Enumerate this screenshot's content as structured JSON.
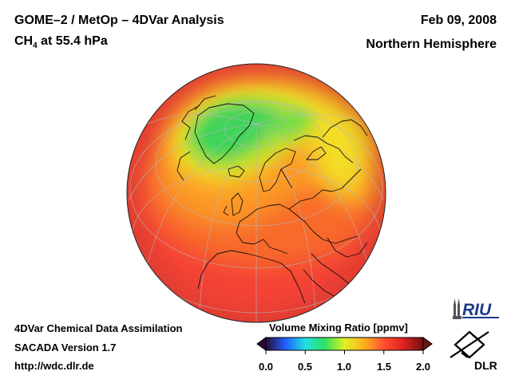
{
  "header": {
    "title": "GOME–2 / MetOp – 4DVar Analysis",
    "species_base": "CH",
    "species_sub": "4",
    "pressure_level": " at 55.4 hPa",
    "date": "Feb 09, 2008",
    "region": "Northern Hemisphere"
  },
  "footer": {
    "line1": "4DVar Chemical Data Assimilation",
    "line2": "SACADA Version 1.7",
    "line3": "http://wdc.dlr.de"
  },
  "colorbar": {
    "title": "Volume Mixing Ratio [ppmv]",
    "min": 0.0,
    "max": 2.0,
    "ticks": [
      "0.0",
      "0.5",
      "1.0",
      "1.5",
      "2.0"
    ],
    "colors": [
      "#2a0a3a",
      "#2060ff",
      "#20e0e0",
      "#30e060",
      "#e0f020",
      "#ffb020",
      "#ff5030",
      "#e02020",
      "#701010"
    ]
  },
  "field_colors": {
    "background": "#f44236",
    "warm": "#f86a2a",
    "orange": "#fb9a28",
    "yellow": "#f3dd28",
    "yellow_green": "#b8e02c",
    "green": "#3fd45a",
    "light_green": "#6edc4c"
  },
  "logos": {
    "riu": "RIU",
    "dlr": "DLR"
  }
}
